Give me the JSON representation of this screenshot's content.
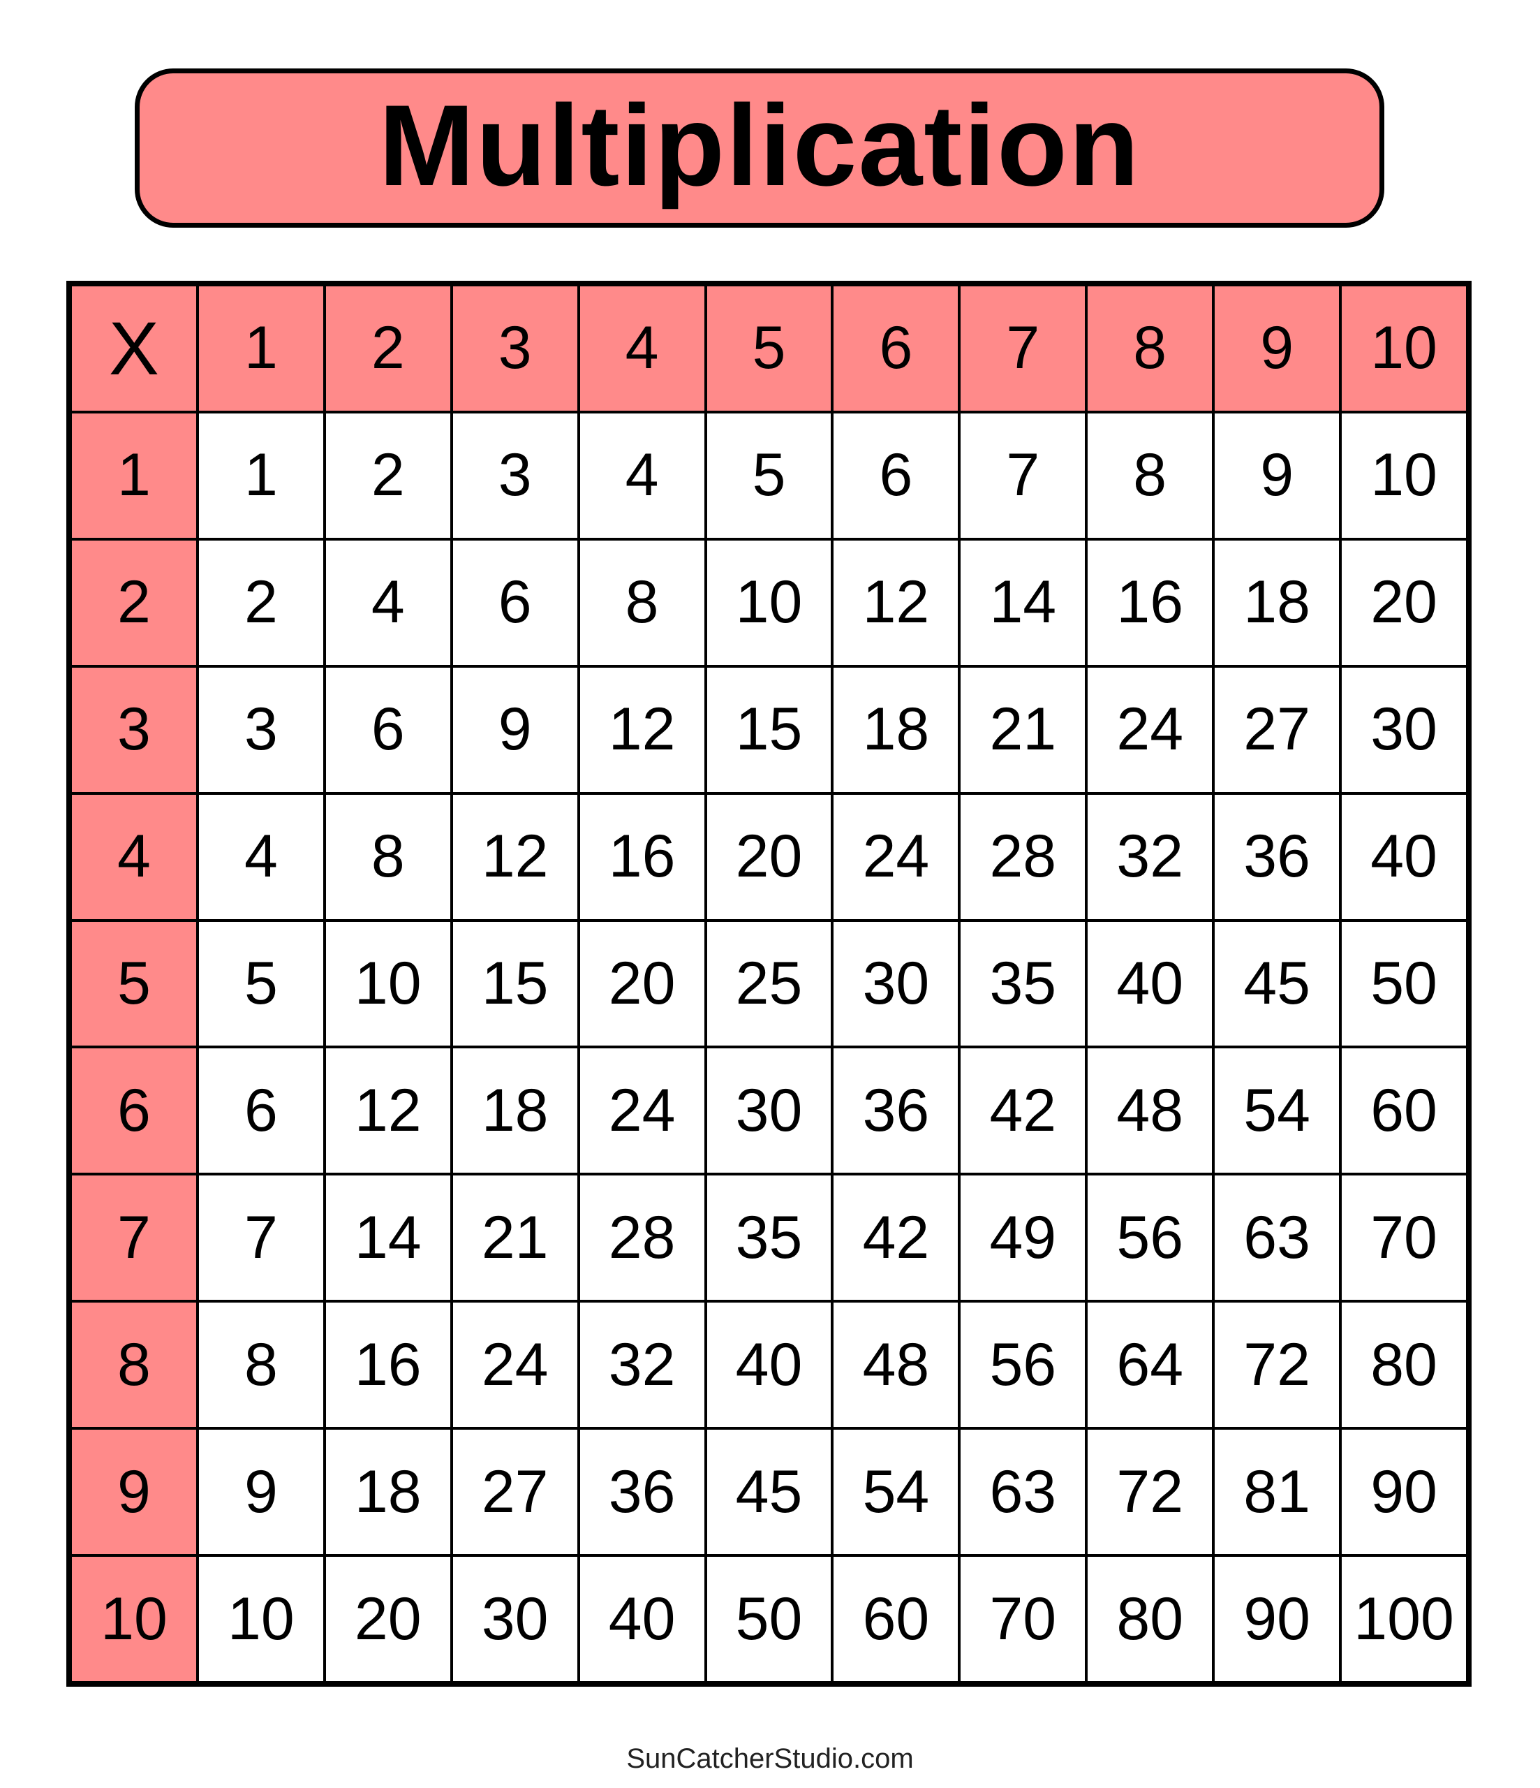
{
  "title": "Multiplication",
  "corner_label": "X",
  "header_color": "#FF8A8A",
  "column_headers": [
    "1",
    "2",
    "3",
    "4",
    "5",
    "6",
    "7",
    "8",
    "9",
    "10"
  ],
  "rows": [
    {
      "label": "1",
      "values": [
        "1",
        "2",
        "3",
        "4",
        "5",
        "6",
        "7",
        "8",
        "9",
        "10"
      ]
    },
    {
      "label": "2",
      "values": [
        "2",
        "4",
        "6",
        "8",
        "10",
        "12",
        "14",
        "16",
        "18",
        "20"
      ]
    },
    {
      "label": "3",
      "values": [
        "3",
        "6",
        "9",
        "12",
        "15",
        "18",
        "21",
        "24",
        "27",
        "30"
      ]
    },
    {
      "label": "4",
      "values": [
        "4",
        "8",
        "12",
        "16",
        "20",
        "24",
        "28",
        "32",
        "36",
        "40"
      ]
    },
    {
      "label": "5",
      "values": [
        "5",
        "10",
        "15",
        "20",
        "25",
        "30",
        "35",
        "40",
        "45",
        "50"
      ]
    },
    {
      "label": "6",
      "values": [
        "6",
        "12",
        "18",
        "24",
        "30",
        "36",
        "42",
        "48",
        "54",
        "60"
      ]
    },
    {
      "label": "7",
      "values": [
        "7",
        "14",
        "21",
        "28",
        "35",
        "42",
        "49",
        "56",
        "63",
        "70"
      ]
    },
    {
      "label": "8",
      "values": [
        "8",
        "16",
        "24",
        "32",
        "40",
        "48",
        "56",
        "64",
        "72",
        "80"
      ]
    },
    {
      "label": "9",
      "values": [
        "9",
        "18",
        "27",
        "36",
        "45",
        "54",
        "63",
        "72",
        "81",
        "90"
      ]
    },
    {
      "label": "10",
      "values": [
        "10",
        "20",
        "30",
        "40",
        "50",
        "60",
        "70",
        "80",
        "90",
        "100"
      ]
    }
  ],
  "footer": "SunCatcherStudio.com"
}
